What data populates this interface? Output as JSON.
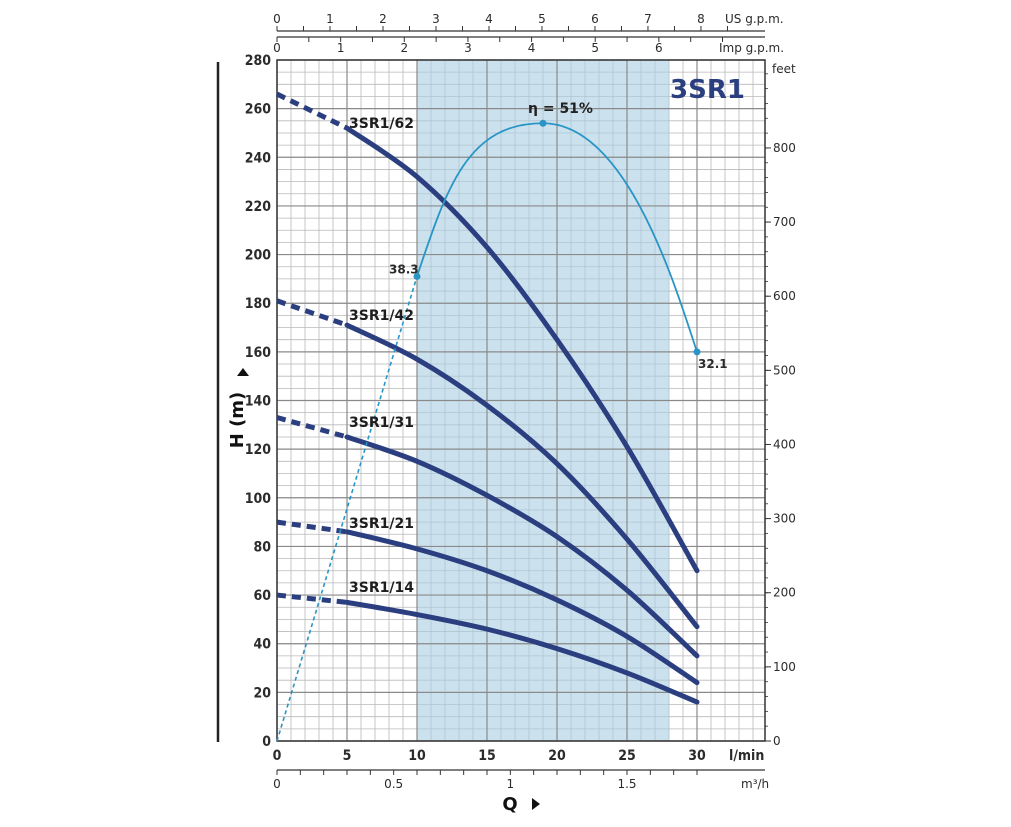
{
  "chart_data": {
    "type": "line",
    "title": "3SR1",
    "xlabel": "Q",
    "ylabel": "H (m)",
    "x_unit": "l/min",
    "x_ticks": [
      0,
      5,
      10,
      15,
      20,
      25,
      30
    ],
    "xlim": [
      0,
      30
    ],
    "ylim": [
      0,
      280
    ],
    "y_ticks": [
      0,
      20,
      40,
      60,
      80,
      100,
      120,
      140,
      160,
      180,
      200,
      220,
      240,
      260,
      280
    ],
    "grid": true,
    "operating_range": [
      10,
      28
    ],
    "secondary_axes": {
      "us_gpm": {
        "label": "US g.p.m.",
        "ticks": [
          0,
          1,
          2,
          3,
          4,
          5,
          6,
          7,
          8
        ]
      },
      "imp_gpm": {
        "label": "Imp g.p.m.",
        "ticks": [
          0,
          1,
          2,
          3,
          4,
          5,
          6
        ]
      },
      "m3h": {
        "label": "m³/h",
        "ticks": [
          "0",
          "0.5",
          "1",
          "1.5"
        ],
        "tick_values": [
          0,
          0.5,
          1,
          1.5
        ]
      },
      "feet": {
        "label": "feet",
        "ticks": [
          0,
          100,
          200,
          300,
          400,
          500,
          600,
          700,
          800
        ]
      }
    },
    "series": [
      {
        "name": "3SR1/62",
        "dashed_to": 5,
        "x": [
          0,
          5,
          10,
          15,
          20,
          25,
          30
        ],
        "y": [
          266,
          252,
          232,
          203,
          165,
          121,
          70
        ]
      },
      {
        "name": "3SR1/42",
        "dashed_to": 5,
        "x": [
          0,
          5,
          10,
          15,
          20,
          25,
          30
        ],
        "y": [
          181,
          171,
          157,
          138,
          114,
          83,
          47
        ]
      },
      {
        "name": "3SR1/31",
        "dashed_to": 5,
        "x": [
          0,
          5,
          10,
          15,
          20,
          25,
          30
        ],
        "y": [
          133,
          125,
          115,
          101,
          84,
          62,
          35
        ]
      },
      {
        "name": "3SR1/21",
        "dashed_to": 5,
        "x": [
          0,
          5,
          10,
          15,
          20,
          25,
          30
        ],
        "y": [
          90,
          86,
          79,
          70,
          58,
          43,
          24
        ]
      },
      {
        "name": "3SR1/14",
        "dashed_to": 5,
        "x": [
          0,
          5,
          10,
          15,
          20,
          25,
          30
        ],
        "y": [
          60,
          57,
          52,
          46,
          38,
          28,
          16
        ]
      }
    ],
    "efficiency_curve": {
      "peak_label": "η = 51%",
      "points": [
        {
          "x": 10,
          "y": 191,
          "label": "38.3"
        },
        {
          "x": 19,
          "y": 254,
          "label": ""
        },
        {
          "x": 30,
          "y": 160,
          "label": "32.1"
        }
      ],
      "dashed_from": 0
    }
  }
}
